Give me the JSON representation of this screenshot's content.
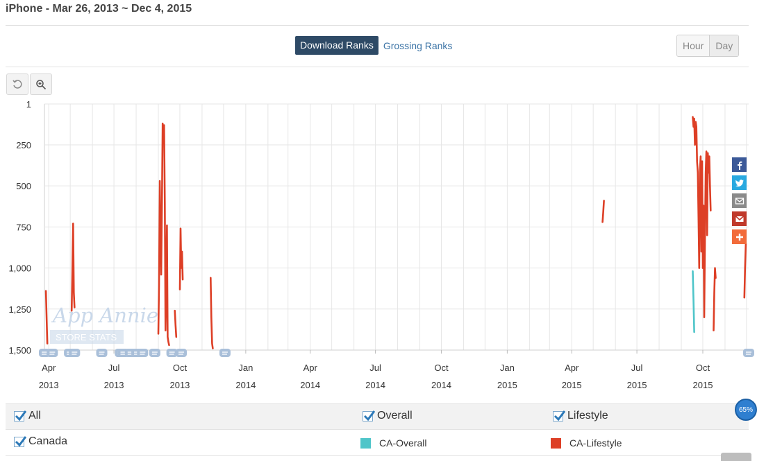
{
  "page": {
    "title": "iPhone - Mar 26, 2013 ~ Dec 4, 2015"
  },
  "tabs": {
    "download": "Download Ranks",
    "grossing": "Grossing Ranks"
  },
  "period": {
    "hour": "Hour",
    "day": "Day"
  },
  "toolbar": {
    "reset_icon": "reset-icon",
    "zoom_icon": "zoom-in-icon"
  },
  "watermark": {
    "line1": "App Annie",
    "line2": "STORE STATS"
  },
  "share": [
    {
      "name": "facebook-icon",
      "color": "#3b5998"
    },
    {
      "name": "twitter-icon",
      "color": "#29a9e0"
    },
    {
      "name": "email-icon",
      "color": "#8a8a8a"
    },
    {
      "name": "gmail-icon",
      "color": "#c0392b"
    },
    {
      "name": "more-share-icon",
      "color": "#f26b3a"
    }
  ],
  "chart_data": {
    "type": "line",
    "title": "",
    "xlabel": "",
    "ylabel": "",
    "y_reversed": true,
    "ylim": [
      1,
      1500
    ],
    "yticks": [
      1,
      250,
      500,
      750,
      1000,
      1250,
      1500
    ],
    "ytick_labels": [
      "1",
      "250",
      "500",
      "750",
      "1,000",
      "1,250",
      "1,500"
    ],
    "x_start": "2013-03-26",
    "x_end": "2015-12-04",
    "xticks": [
      {
        "date": "2013-04-01",
        "month": "Apr",
        "year": "2013"
      },
      {
        "date": "2013-07-01",
        "month": "Jul",
        "year": "2013"
      },
      {
        "date": "2013-10-01",
        "month": "Oct",
        "year": "2013"
      },
      {
        "date": "2014-01-01",
        "month": "Jan",
        "year": "2014"
      },
      {
        "date": "2014-04-01",
        "month": "Apr",
        "year": "2014"
      },
      {
        "date": "2014-07-01",
        "month": "Jul",
        "year": "2014"
      },
      {
        "date": "2014-10-01",
        "month": "Oct",
        "year": "2014"
      },
      {
        "date": "2015-01-01",
        "month": "Jan",
        "year": "2015"
      },
      {
        "date": "2015-04-01",
        "month": "Apr",
        "year": "2015"
      },
      {
        "date": "2015-07-01",
        "month": "Jul",
        "year": "2015"
      },
      {
        "date": "2015-10-01",
        "month": "Oct",
        "year": "2015"
      }
    ],
    "grid": true,
    "series": [
      {
        "name": "CA-Overall",
        "color": "#4fc5c9",
        "segments": [
          [
            [
              "2015-09-17",
              1020
            ],
            [
              "2015-09-18",
              1200
            ],
            [
              "2015-09-19",
              1390
            ]
          ]
        ]
      },
      {
        "name": "CA-Lifestyle",
        "color": "#dd3f26",
        "segments": [
          [
            [
              "2013-03-28",
              1140
            ],
            [
              "2013-03-29",
              1300
            ],
            [
              "2013-03-30",
              1460
            ]
          ],
          [
            [
              "2013-05-03",
              1260
            ],
            [
              "2013-05-04",
              1020
            ],
            [
              "2013-05-05",
              730
            ],
            [
              "2013-05-06",
              1150
            ],
            [
              "2013-05-07",
              1240
            ]
          ],
          [
            [
              "2013-09-01",
              1400
            ],
            [
              "2013-09-02",
              1100
            ],
            [
              "2013-09-03",
              470
            ],
            [
              "2013-09-04",
              800
            ],
            [
              "2013-09-05",
              1040
            ],
            [
              "2013-09-06",
              600
            ],
            [
              "2013-09-07",
              120
            ],
            [
              "2013-09-08",
              170
            ],
            [
              "2013-09-09",
              130
            ],
            [
              "2013-09-10",
              600
            ],
            [
              "2013-09-11",
              1380
            ],
            [
              "2013-09-12",
              1100
            ],
            [
              "2013-09-13",
              740
            ],
            [
              "2013-09-14",
              1420
            ],
            [
              "2013-09-15",
              1450
            ],
            [
              "2013-09-16",
              1470
            ]
          ],
          [
            [
              "2013-09-24",
              1260
            ],
            [
              "2013-09-25",
              1350
            ],
            [
              "2013-09-26",
              1420
            ]
          ],
          [
            [
              "2013-10-01",
              1130
            ],
            [
              "2013-10-02",
              760
            ],
            [
              "2013-10-03",
              1000
            ],
            [
              "2013-10-04",
              900
            ],
            [
              "2013-10-05",
              1070
            ]
          ],
          [
            [
              "2013-11-13",
              1060
            ],
            [
              "2013-11-14",
              1300
            ],
            [
              "2013-11-15",
              1460
            ],
            [
              "2013-11-16",
              1490
            ]
          ],
          [
            [
              "2015-05-14",
              720
            ],
            [
              "2015-05-15",
              660
            ],
            [
              "2015-05-16",
              590
            ]
          ],
          [
            [
              "2015-09-17",
              80
            ],
            [
              "2015-09-18",
              140
            ],
            [
              "2015-09-19",
              90
            ],
            [
              "2015-09-20",
              250
            ],
            [
              "2015-09-21",
              110
            ],
            [
              "2015-09-22",
              140
            ],
            [
              "2015-09-23",
              350
            ],
            [
              "2015-09-24",
              420
            ],
            [
              "2015-09-25",
              700
            ],
            [
              "2015-09-26",
              1000
            ],
            [
              "2015-09-27",
              400
            ],
            [
              "2015-09-28",
              320
            ],
            [
              "2015-09-29",
              900
            ],
            [
              "2015-09-30",
              350
            ],
            [
              "2015-10-01",
              1000
            ],
            [
              "2015-10-02",
              620
            ],
            [
              "2015-10-03",
              1300
            ],
            [
              "2015-10-04",
              800
            ],
            [
              "2015-10-05",
              420
            ],
            [
              "2015-10-06",
              290
            ],
            [
              "2015-10-07",
              800
            ],
            [
              "2015-10-08",
              300
            ],
            [
              "2015-10-09",
              420
            ],
            [
              "2015-10-10",
              320
            ],
            [
              "2015-10-11",
              500
            ],
            [
              "2015-10-12",
              650
            ]
          ],
          [
            [
              "2015-10-16",
              1380
            ],
            [
              "2015-10-17",
              1150
            ],
            [
              "2015-10-18",
              1000
            ],
            [
              "2015-10-19",
              1060
            ]
          ],
          [
            [
              "2015-11-28",
              1180
            ],
            [
              "2015-11-29",
              1000
            ],
            [
              "2015-11-30",
              850
            ]
          ]
        ]
      }
    ],
    "annotation_markers": [
      "2013-03-26",
      "2013-04-06",
      "2013-04-30",
      "2013-05-07",
      "2013-06-14",
      "2013-07-10",
      "2013-07-14",
      "2013-07-24",
      "2013-08-02",
      "2013-08-10",
      "2013-08-27",
      "2013-09-20",
      "2013-10-03",
      "2013-12-03",
      "2015-12-04"
    ]
  },
  "legend": {
    "filters": [
      {
        "label": "All",
        "checked": true
      },
      {
        "label": "Overall",
        "checked": true
      },
      {
        "label": "Lifestyle",
        "checked": true
      }
    ],
    "country": {
      "label": "Canada",
      "checked": true
    },
    "series": [
      {
        "label": "CA-Overall",
        "color": "#4fc5c9"
      },
      {
        "label": "CA-Lifestyle",
        "color": "#dd3f26"
      }
    ]
  },
  "badge": {
    "percent": "65%"
  }
}
